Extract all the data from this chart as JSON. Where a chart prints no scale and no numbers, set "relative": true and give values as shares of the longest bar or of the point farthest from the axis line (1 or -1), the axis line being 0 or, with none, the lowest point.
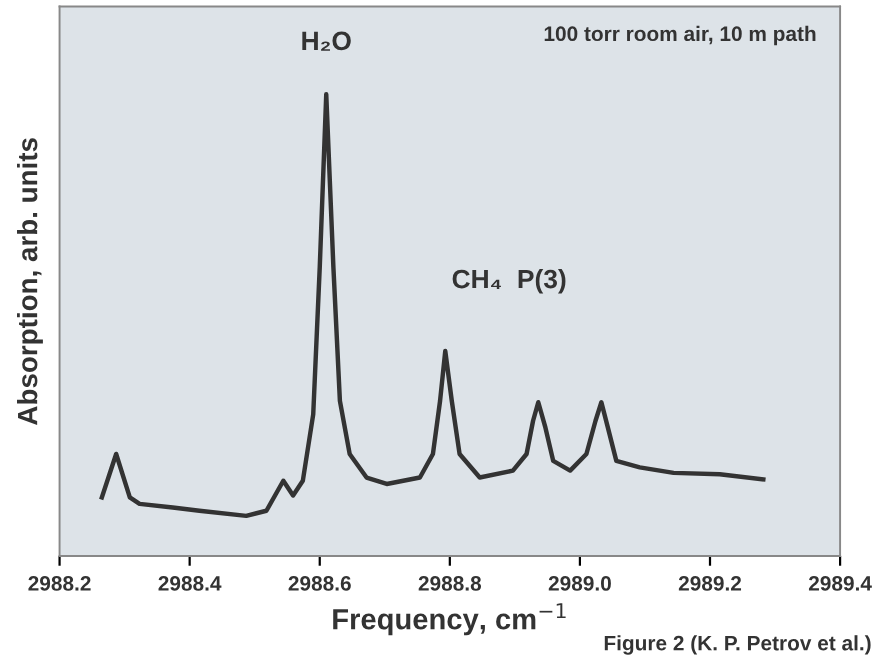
{
  "chart_data": {
    "type": "line",
    "relative": true,
    "xlabel": "Frequency, cm$^{−1}$",
    "ylabel": "Absorption, arb. units",
    "x": [
      2988.265,
      2988.287,
      2988.308,
      2988.323,
      2988.374,
      2988.415,
      2988.487,
      2988.518,
      2988.544,
      2988.559,
      2988.574,
      2988.59,
      2988.6,
      2988.61,
      2988.621,
      2988.631,
      2988.646,
      2988.672,
      2988.703,
      2988.754,
      2988.774,
      2988.785,
      2988.793,
      2988.803,
      2988.815,
      2988.846,
      2988.897,
      2988.918,
      2988.928,
      2988.936,
      2988.947,
      2988.959,
      2988.985,
      2989.01,
      2989.024,
      2989.033,
      2989.043,
      2989.056,
      2989.092,
      2989.144,
      2989.215,
      2989.282
    ],
    "series": [
      {
        "color": "#333333",
        "values": [
          0.127,
          0.221,
          0.127,
          0.113,
          0.105,
          0.098,
          0.087,
          0.098,
          0.163,
          0.131,
          0.163,
          0.307,
          0.625,
          1.0,
          0.625,
          0.336,
          0.221,
          0.17,
          0.156,
          0.17,
          0.221,
          0.336,
          0.444,
          0.336,
          0.221,
          0.17,
          0.185,
          0.221,
          0.293,
          0.333,
          0.278,
          0.206,
          0.185,
          0.221,
          0.293,
          0.333,
          0.278,
          0.206,
          0.192,
          0.18,
          0.177,
          0.166
        ]
      }
    ],
    "xlim": [
      2988.2,
      2989.4
    ],
    "xticks": [
      2988.2,
      2988.4,
      2988.6,
      2988.8,
      {
        "value": 2989.0,
        "label": "2989.0"
      },
      2989.2,
      2989.4
    ],
    "annotations": [
      {
        "text": "H₂O",
        "x": 2988.61,
        "y": 1.0
      },
      "CH₄  P(3)",
      "100 torr room air, 10 m path",
      "Figure 2 (K. P. Petrov et al.)"
    ],
    "grid": false,
    "legend": false,
    "marker": "none",
    "line_style": "solid"
  }
}
